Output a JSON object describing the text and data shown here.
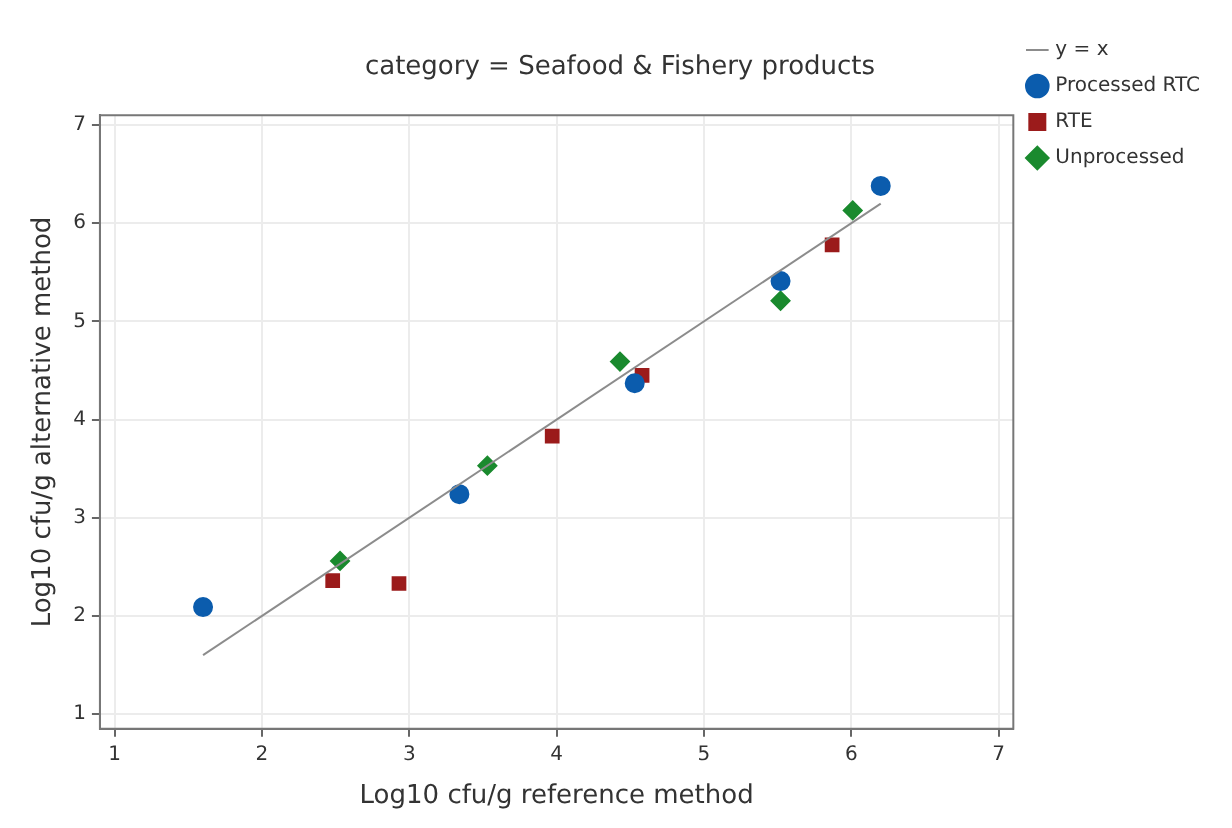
{
  "chart_data": {
    "type": "scatter",
    "title": "category = Seafood & Fishery products",
    "xlabel": "Log10 cfu/g reference method",
    "ylabel": "Log10 cfu/g alternative method",
    "xlim": [
      0.9,
      7.1
    ],
    "ylim": [
      0.85,
      7.1
    ],
    "xticks": [
      1,
      2,
      3,
      4,
      5,
      6,
      7
    ],
    "yticks": [
      1,
      2,
      3,
      4,
      5,
      6,
      7
    ],
    "grid": true,
    "legend": "top right",
    "series": [
      {
        "name": "y = x",
        "type": "line",
        "color": "#8c8c8c",
        "marker": "none",
        "x": [
          1.6,
          6.2
        ],
        "values": [
          1.6,
          6.2
        ]
      },
      {
        "name": "Processed RTC",
        "color": "#0b5cad",
        "marker": "circle",
        "x": [
          1.6,
          3.34,
          4.53,
          5.52,
          6.2
        ],
        "values": [
          2.09,
          3.24,
          4.37,
          5.41,
          6.38
        ]
      },
      {
        "name": "RTE",
        "color": "#9b1b1b",
        "marker": "square",
        "x": [
          2.48,
          2.93,
          3.97,
          4.58,
          5.87
        ],
        "values": [
          2.36,
          2.33,
          3.83,
          4.45,
          5.78
        ]
      },
      {
        "name": "Unprocessed",
        "color": "#1a8a2e",
        "marker": "diamond",
        "x": [
          2.53,
          3.53,
          4.43,
          5.52,
          6.01
        ],
        "values": [
          2.56,
          3.53,
          4.59,
          5.21,
          6.13
        ]
      }
    ]
  }
}
